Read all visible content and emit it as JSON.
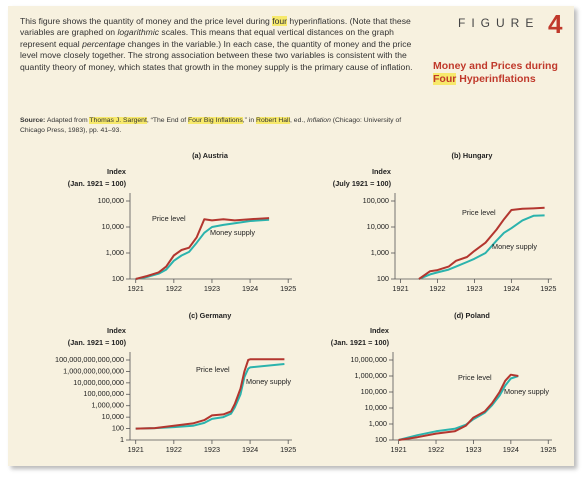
{
  "figure": {
    "word": "FIGURE",
    "number": "4"
  },
  "heading": [
    "Money and Prices during ",
    "Four",
    " Hyperinflations"
  ],
  "caption": [
    "This figure shows the quantity of money and the price level during ",
    "four",
    " hyperinflations. (Note that these variables are graphed on ",
    "logarithmic",
    " scales. This means that equal vertical distances on the graph represent equal ",
    "percentage",
    " changes in the variable.) In each case, the quantity of money and the price level move closely together. The strong association between these two variables is consistent with the quantity theory of money, which states that growth in the money supply is the primary cause of inflation."
  ],
  "source": [
    "Source:",
    " Adapted from ",
    "Thomas J. Sargent",
    ", “The End of ",
    "Four Big Inflations",
    ",” in ",
    "Robert Hall",
    ", ed., ",
    "Inflation",
    " (Chicago: University of Chicago Press, 1983), pp. 41–93."
  ],
  "chart_data": [
    {
      "type": "line",
      "title": "(a) Austria",
      "ylabel": [
        "Index",
        "(Jan. 1921 = 100)"
      ],
      "yscale": "log",
      "x": [
        1921,
        1921.3,
        1921.6,
        1921.8,
        1922,
        1922.2,
        1922.4,
        1922.6,
        1922.8,
        1923,
        1923.3,
        1923.6,
        1924,
        1924.5
      ],
      "xlim": [
        1920.85,
        1925.1
      ],
      "xticks": [
        1921,
        1922,
        1923,
        1924,
        1925
      ],
      "ylim": [
        100,
        100000
      ],
      "yticks": [
        100,
        {
          "value": 1000,
          "label": "1,000"
        },
        {
          "value": 10000,
          "label": "10,000"
        },
        {
          "value": 100000,
          "label": "100,000"
        }
      ],
      "series": [
        {
          "name": "Price level",
          "color": "#b3362f",
          "values": [
            100,
            130,
            180,
            300,
            800,
            1300,
            1600,
            4000,
            20000,
            18000,
            20000,
            18000,
            20000,
            22000
          ]
        },
        {
          "name": "Money supply",
          "color": "#2bb3ad",
          "values": [
            100,
            120,
            160,
            230,
            500,
            800,
            1100,
            2500,
            6000,
            10000,
            12000,
            14000,
            17000,
            19000
          ]
        }
      ]
    },
    {
      "type": "line",
      "title": "(b) Hungary",
      "ylabel": [
        "Index",
        "(July 1921 = 100)"
      ],
      "yscale": "log",
      "x": [
        1921.5,
        1921.8,
        1922,
        1922.3,
        1922.5,
        1922.8,
        1923,
        1923.3,
        1923.6,
        1923.8,
        1924,
        1924.3,
        1924.6,
        1924.9
      ],
      "xlim": [
        1920.85,
        1925.1
      ],
      "xticks": [
        1921,
        1922,
        1923,
        1924,
        1925
      ],
      "ylim": [
        100,
        100000
      ],
      "yticks": [
        100,
        {
          "value": 1000,
          "label": "1,000"
        },
        {
          "value": 10000,
          "label": "10,000"
        },
        {
          "value": 100000,
          "label": "100,000"
        }
      ],
      "series": [
        {
          "name": "Price level",
          "color": "#b3362f",
          "values": [
            100,
            200,
            220,
            300,
            500,
            700,
            1200,
            2500,
            8000,
            20000,
            45000,
            50000,
            52000,
            55000
          ]
        },
        {
          "name": "Money supply",
          "color": "#2bb3ad",
          "values": [
            100,
            150,
            180,
            230,
            300,
            450,
            600,
            1000,
            3000,
            6000,
            9000,
            18000,
            27000,
            28000
          ]
        }
      ]
    },
    {
      "type": "line",
      "title": "(c) Germany",
      "ylabel": [
        "Index",
        "(Jan. 1921 = 100)"
      ],
      "yscale": "log",
      "x": [
        1921,
        1921.5,
        1922,
        1922.5,
        1922.8,
        1923,
        1923.3,
        1923.5,
        1923.6,
        1923.75,
        1923.85,
        1923.95,
        1924,
        1924.9
      ],
      "xlim": [
        1920.85,
        1925.1
      ],
      "xticks": [
        1921,
        1922,
        1923,
        1924,
        1925
      ],
      "ylim": [
        1,
        100000000000000
      ],
      "yticks": [
        1,
        100,
        {
          "value": 10000,
          "label": "10,000"
        },
        {
          "value": 1000000,
          "label": "1,000,000"
        },
        {
          "value": 100000000,
          "label": "100,000,000"
        },
        {
          "value": 10000000000,
          "label": "10,000,000,000"
        },
        {
          "value": 1000000000000,
          "label": "1,000,000,000,000"
        },
        {
          "value": 100000000000000,
          "label": "100,000,000,000,000"
        }
      ],
      "series": [
        {
          "name": "Price level",
          "color": "#b3362f",
          "values": [
            100,
            120,
            300,
            800,
            3000,
            20000,
            30000,
            100000,
            2000000,
            1000000000,
            1000000000000,
            100000000000000,
            130000000000000,
            130000000000000
          ]
        },
        {
          "name": "Money supply",
          "color": "#2bb3ad",
          "values": [
            100,
            120,
            180,
            300,
            1000,
            5000,
            10000,
            40000,
            500000,
            100000000,
            100000000000,
            3000000000000,
            5000000000000,
            20000000000000
          ]
        }
      ]
    },
    {
      "type": "line",
      "title": "(d) Poland",
      "ylabel": [
        "Index",
        "(Jan. 1921 = 100)"
      ],
      "yscale": "log",
      "x": [
        1921,
        1921.5,
        1922,
        1922.5,
        1922.8,
        1923,
        1923.3,
        1923.5,
        1923.7,
        1923.85,
        1924,
        1924.2
      ],
      "xlim": [
        1920.85,
        1925.1
      ],
      "xticks": [
        1921,
        1922,
        1923,
        1924,
        1925
      ],
      "ylim": [
        100,
        10000000
      ],
      "yticks": [
        100,
        {
          "value": 1000,
          "label": "1,000"
        },
        {
          "value": 10000,
          "label": "10,000"
        },
        {
          "value": 100000,
          "label": "100,000"
        },
        {
          "value": 1000000,
          "label": "1,000,000"
        },
        {
          "value": 10000000,
          "label": "10,000,000"
        }
      ],
      "series": [
        {
          "name": "Price level",
          "color": "#b3362f",
          "values": [
            100,
            150,
            250,
            350,
            800,
            2500,
            6000,
            20000,
            100000,
            500000,
            1200000,
            1000000
          ]
        },
        {
          "name": "Money supply",
          "color": "#2bb3ad",
          "values": [
            100,
            200,
            350,
            500,
            900,
            2000,
            5000,
            15000,
            60000,
            250000,
            700000,
            1000000
          ]
        }
      ]
    }
  ]
}
